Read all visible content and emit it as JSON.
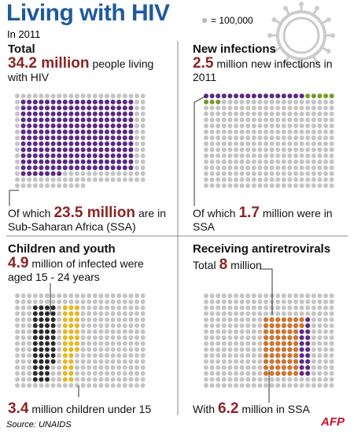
{
  "title": "Living with HIV",
  "subtitle": "In 2011",
  "legend": {
    "label": "= 100,000"
  },
  "panels": [
    {
      "heading": "Total",
      "lead": {
        "value": 34.2,
        "label": "34.2 million"
      },
      "lead_text": "people living with HIV",
      "sub_pre": "Of which",
      "sub": {
        "value": 23.5,
        "label": "23.5 million"
      },
      "sub_post": "are in Sub-Saharan Africa (SSA)"
    },
    {
      "heading": "New infections",
      "lead": 2.5,
      "lead_text": "million new infections in 2011",
      "sub_pre": "Of which",
      "sub": 1.7,
      "sub_post": "million were in SSA"
    },
    {
      "heading": "Children and youth",
      "lead": 4.9,
      "lead_text": "million of infected were aged 15 - 24 years",
      "sub": 3.4,
      "sub_post": "million children under 15"
    },
    {
      "heading": "Receiving antiretrovirals",
      "lead_pre": "Total",
      "lead": 8,
      "lead_text": "million",
      "sub_pre": "With",
      "sub": 6.2,
      "sub_post": "million in SSA"
    }
  ],
  "source": "Source: UNAIDS",
  "logo": "AFP"
}
